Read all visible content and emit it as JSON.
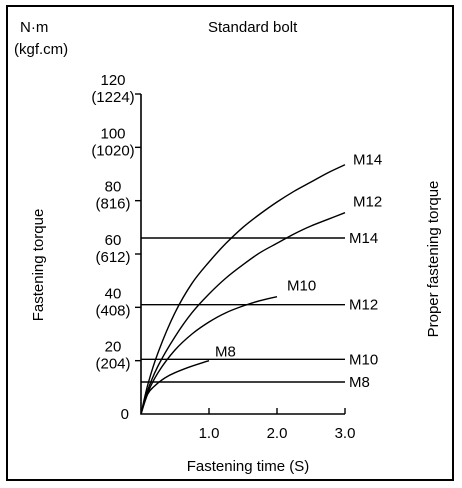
{
  "chart_data": {
    "type": "line",
    "title": "Standard bolt",
    "xlabel": "Fastening time (S)",
    "ylabel": "Fastening torque",
    "right_label": "Proper fastening torque",
    "y_unit_line1": "N·m",
    "y_unit_line2": "(kgf.cm)",
    "xlim": [
      0,
      3.0
    ],
    "ylim": [
      0,
      120
    ],
    "origin_label": "0",
    "x_ticks": [
      {
        "value": 1.0,
        "label": "1.0"
      },
      {
        "value": 2.0,
        "label": "2.0"
      },
      {
        "value": 3.0,
        "label": "3.0"
      }
    ],
    "y_ticks": [
      {
        "value": 20,
        "label1": "20",
        "label2": "(204)"
      },
      {
        "value": 40,
        "label1": "40",
        "label2": "(408)"
      },
      {
        "value": 60,
        "label1": "60",
        "label2": "(612)"
      },
      {
        "value": 80,
        "label1": "80",
        "label2": "(816)"
      },
      {
        "value": 100,
        "label1": "100",
        "label2": "(1020)"
      },
      {
        "value": 120,
        "label1": "120",
        "label2": "(1224)"
      }
    ],
    "series": [
      {
        "name": "M8",
        "x": [
          0,
          0.1,
          0.2,
          0.35,
          0.5,
          0.7,
          0.9,
          1.0
        ],
        "y": [
          0,
          7.5,
          10.5,
          13.5,
          15.5,
          17.5,
          19.2,
          20
        ]
      },
      {
        "name": "M10",
        "x": [
          0,
          0.1,
          0.25,
          0.5,
          0.75,
          1.0,
          1.25,
          1.5,
          1.75,
          2.0
        ],
        "y": [
          0,
          8,
          15.5,
          24,
          30,
          34.5,
          38,
          40.5,
          42.5,
          44
        ]
      },
      {
        "name": "M12",
        "x": [
          0,
          0.1,
          0.25,
          0.5,
          0.75,
          1.0,
          1.25,
          1.5,
          1.75,
          2.0,
          2.25,
          2.5,
          2.75,
          3.0
        ],
        "y": [
          0,
          9,
          18,
          29,
          38,
          45,
          51,
          56,
          60.5,
          64,
          67.5,
          70.5,
          73,
          75.5
        ]
      },
      {
        "name": "M14",
        "x": [
          0,
          0.1,
          0.25,
          0.5,
          0.75,
          1.0,
          1.25,
          1.5,
          1.75,
          2.0,
          2.25,
          2.5,
          2.75,
          3.0
        ],
        "y": [
          0,
          11,
          23,
          38,
          49,
          57,
          64,
          70,
          75,
          79.5,
          83.5,
          87,
          90.5,
          93.5
        ]
      }
    ],
    "proper_torque": [
      {
        "name": "M14",
        "value": 66
      },
      {
        "name": "M12",
        "value": 41
      },
      {
        "name": "M10",
        "value": 20.5
      },
      {
        "name": "M8",
        "value": 12
      }
    ]
  }
}
